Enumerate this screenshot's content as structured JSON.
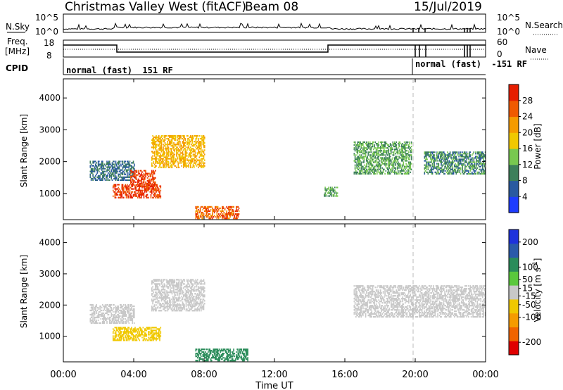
{
  "header": {
    "radar": "Christmas Valley West (fitACF)",
    "beam": "Beam 08",
    "date": "15/Jul/2019"
  },
  "top_panels": {
    "nsky_label": "N.Sky",
    "nsearch_label": "N.Search",
    "freq_label_line1": "Freq.",
    "freq_label_line2": "[MHz]",
    "nave_label": "Nave",
    "cpid_label": "CPID",
    "noise_ticks_left": [
      "10^5",
      "10^0"
    ],
    "noise_ticks_right": [
      "10^5",
      "10^0"
    ],
    "freq_ticks": [
      "18",
      "8"
    ],
    "nave_ticks": [
      "60",
      "0"
    ],
    "cpid_segments": [
      {
        "text": "normal (fast)  151 RF"
      },
      {
        "text": "normal (fast)  -151 RF"
      }
    ]
  },
  "chart_data": [
    {
      "type": "heatmap",
      "title": "",
      "xlabel": "",
      "ylabel": "Slant Range [km]",
      "ylim": [
        180,
        4600
      ],
      "yticks": [
        1000,
        2000,
        3000,
        4000
      ],
      "xlim": [
        "00:00",
        "24:00"
      ],
      "colorbar": {
        "label": "Power [dB]",
        "ticks": [
          4,
          8,
          12,
          16,
          20,
          24,
          28
        ],
        "range": [
          0,
          32
        ],
        "colors": [
          "#1e3cff",
          "#2a5aa0",
          "#3c7f5a",
          "#78c850",
          "#f0c800",
          "#f59b00",
          "#f05a00",
          "#e61e00"
        ]
      },
      "features": [
        {
          "name": "early F-region band",
          "t": [
            1.5,
            4.0
          ],
          "range_km": [
            1400,
            2000
          ],
          "power_db": 8
        },
        {
          "name": "bright E-band echoes",
          "t": [
            2.8,
            5.5
          ],
          "range_km": [
            850,
            1300
          ],
          "power_db": 28
        },
        {
          "name": "V-shaped bright echo",
          "t": [
            3.8,
            5.2
          ],
          "range_km": [
            1200,
            1700
          ],
          "power_db": 28
        },
        {
          "name": "rising F-band",
          "t": [
            5.0,
            8.0
          ],
          "range_km": [
            1800,
            2800
          ],
          "power_db": 20
        },
        {
          "name": "near-range E-region",
          "t": [
            7.5,
            10.0
          ],
          "range_km": [
            200,
            600
          ],
          "power_db": 26
        },
        {
          "name": "evening band",
          "t": [
            14.8,
            15.6
          ],
          "range_km": [
            900,
            1200
          ],
          "power_db": 12
        },
        {
          "name": "late-day F-region",
          "t": [
            16.5,
            19.8
          ],
          "range_km": [
            1600,
            2600
          ],
          "power_db": 12
        },
        {
          "name": "post-20UT band",
          "t": [
            20.5,
            24.0
          ],
          "range_km": [
            1600,
            2300
          ],
          "power_db": 10
        }
      ]
    },
    {
      "type": "heatmap",
      "title": "",
      "xlabel": "Time UT",
      "ylabel": "Slant Range [km]",
      "ylim": [
        180,
        4600
      ],
      "yticks": [
        1000,
        2000,
        3000,
        4000
      ],
      "xlim": [
        "00:00",
        "24:00"
      ],
      "xticks": [
        "00:00",
        "04:00",
        "08:00",
        "12:00",
        "16:00",
        "20:00",
        "00:00"
      ],
      "colorbar": {
        "label": "Velocity [m s^-1]",
        "ticks": [
          -200,
          -100,
          -50,
          -15,
          15,
          50,
          100,
          200
        ],
        "range": [
          -250,
          250
        ],
        "colors": [
          "#e00000",
          "#f06400",
          "#f59b00",
          "#f0c800",
          "#c8c8c8",
          "#5ac83c",
          "#2a8c5a",
          "#2a5aaa",
          "#1e32dc"
        ]
      },
      "features": [
        {
          "name": "ground scatter F-band",
          "t": [
            1.5,
            4.0
          ],
          "range_km": [
            1400,
            2000
          ],
          "velocity": 0
        },
        {
          "name": "E-band with negative velocity",
          "t": [
            2.8,
            5.5
          ],
          "range_km": [
            850,
            1300
          ],
          "velocity": -50
        },
        {
          "name": "rising ground scatter",
          "t": [
            5.0,
            8.0
          ],
          "range_km": [
            1800,
            2800
          ],
          "velocity": 0
        },
        {
          "name": "near-range positive velocity",
          "t": [
            7.5,
            10.5
          ],
          "range_km": [
            200,
            600
          ],
          "velocity": 100
        },
        {
          "name": "late-day ground scatter",
          "t": [
            16.5,
            24.0
          ],
          "range_km": [
            1600,
            2600
          ],
          "velocity": 0
        }
      ]
    }
  ]
}
